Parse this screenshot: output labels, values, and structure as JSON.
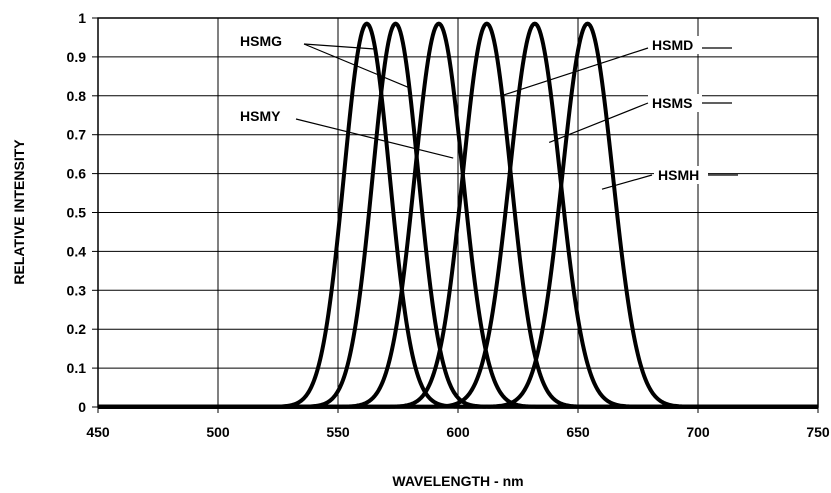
{
  "chart_data": {
    "type": "line",
    "title": "",
    "xlabel": "WAVELENGTH - nm",
    "ylabel": "RELATIVE INTENSITY",
    "xlim": [
      450,
      750
    ],
    "ylim": [
      0,
      1
    ],
    "x_ticks": [
      "450",
      "500",
      "550",
      "600",
      "650",
      "700",
      "750"
    ],
    "y_ticks": [
      "0",
      "0.1",
      "0.2",
      "0.3",
      "0.4",
      "0.5",
      "0.6",
      "0.7",
      "0.8",
      "0.9",
      "1"
    ],
    "grid": "vertical-and-horizontal",
    "legend": "none",
    "line_color": "#000000",
    "series": [
      {
        "name": "HSMG",
        "peak_nm": 562,
        "sigma_nm": 9.5
      },
      {
        "name": "HSMG",
        "peak_nm": 574,
        "sigma_nm": 9.5
      },
      {
        "name": "HSMY",
        "peak_nm": 592,
        "sigma_nm": 10
      },
      {
        "name": "HSMD",
        "peak_nm": 612,
        "sigma_nm": 10
      },
      {
        "name": "HSMS",
        "peak_nm": 632,
        "sigma_nm": 10.5
      },
      {
        "name": "HSMH",
        "peak_nm": 654,
        "sigma_nm": 10.5
      }
    ],
    "annotations": [
      {
        "text": "HSMG",
        "targets_nm": [
          [
            566,
            0.92
          ],
          [
            580,
            0.82
          ]
        ]
      },
      {
        "text": "HSMY",
        "targets_nm": [
          [
            598,
            0.64
          ]
        ]
      },
      {
        "text": "HSMD",
        "targets_nm": [
          [
            618,
            0.8
          ]
        ]
      },
      {
        "text": "HSMS",
        "targets_nm": [
          [
            638,
            0.68
          ]
        ]
      },
      {
        "text": "HSMH",
        "targets_nm": [
          [
            660,
            0.56
          ]
        ]
      }
    ]
  }
}
